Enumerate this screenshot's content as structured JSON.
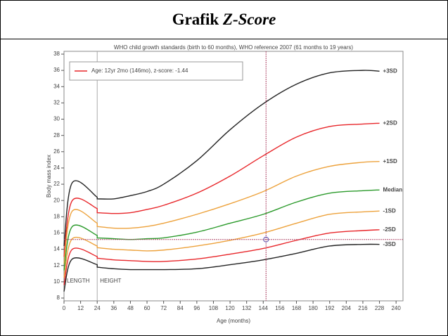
{
  "header": {
    "title": "Grafik",
    "title_emphasis": "Z-Score"
  },
  "chart_data": {
    "type": "line",
    "title": "WHO child growth standards (birth to 60 months), WHO reference 2007 (61 months to 19 years)",
    "x_label": "Age (months)",
    "y_label": "Body mass index",
    "annotations": [
      "LENGTH",
      "HEIGHT"
    ],
    "legend": "Age: 12yr 2mo (146mo), z-score: -1.44",
    "xlim": [
      0,
      245
    ],
    "ylim": [
      8,
      38
    ],
    "xticks": [
      0,
      12,
      24,
      36,
      48,
      60,
      72,
      84,
      96,
      108,
      120,
      132,
      144,
      156,
      168,
      180,
      192,
      204,
      216,
      228,
      240
    ],
    "yticks": [
      8,
      10,
      12,
      14,
      16,
      18,
      20,
      22,
      24,
      26,
      28,
      30,
      32,
      34,
      36,
      38
    ],
    "x": [
      0,
      6,
      24,
      24,
      36,
      48,
      60,
      72,
      96,
      120,
      144,
      168,
      192,
      216,
      228
    ],
    "series": [
      {
        "name": "+3SD",
        "color": "#222222",
        "values": [
          14.4,
          22.2,
          20.4,
          20.2,
          20.2,
          20.6,
          21.1,
          22.0,
          24.9,
          28.7,
          31.9,
          34.3,
          35.7,
          36.0,
          35.9
        ]
      },
      {
        "name": "+2SD",
        "color": "#e8262a",
        "values": [
          13.1,
          20.0,
          19.0,
          18.5,
          18.4,
          18.5,
          18.9,
          19.4,
          20.9,
          23.0,
          25.5,
          27.8,
          29.1,
          29.4,
          29.5
        ]
      },
      {
        "name": "+1SD",
        "color": "#eda23c",
        "values": [
          12.2,
          18.7,
          17.2,
          16.8,
          16.6,
          16.6,
          16.8,
          17.2,
          18.3,
          19.6,
          21.1,
          23.0,
          24.2,
          24.7,
          24.8
        ]
      },
      {
        "name": "Median",
        "color": "#2b9a2b",
        "values": [
          11.4,
          16.8,
          15.7,
          15.4,
          15.3,
          15.2,
          15.3,
          15.4,
          16.1,
          17.2,
          18.3,
          19.8,
          20.9,
          21.2,
          21.3
        ]
      },
      {
        "name": "-1SD",
        "color": "#eda23c",
        "values": [
          10.5,
          15.3,
          14.4,
          14.2,
          14.0,
          13.9,
          13.8,
          13.9,
          14.4,
          15.1,
          16.0,
          17.2,
          18.3,
          18.6,
          18.7
        ]
      },
      {
        "name": "-2SD",
        "color": "#e8262a",
        "values": [
          9.6,
          14.0,
          13.1,
          12.9,
          12.7,
          12.6,
          12.5,
          12.5,
          12.8,
          13.4,
          14.1,
          15.1,
          16.0,
          16.3,
          16.4
        ]
      },
      {
        "name": "-3SD",
        "color": "#222222",
        "values": [
          8.8,
          12.8,
          12.1,
          11.8,
          11.6,
          11.5,
          11.5,
          11.5,
          11.6,
          12.1,
          12.7,
          13.5,
          14.4,
          14.6,
          14.6
        ]
      }
    ],
    "point": {
      "x": 146,
      "y": 15.2,
      "color": "#5a4fb0"
    },
    "marker_line_x": 24
  }
}
